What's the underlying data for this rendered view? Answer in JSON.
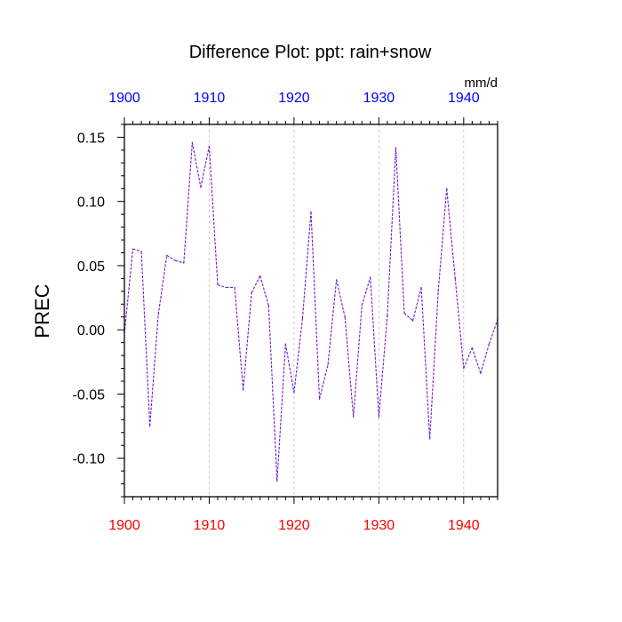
{
  "chart_data": {
    "type": "line",
    "title": "Difference Plot: ppt: rain+snow",
    "units_label": "mm/d",
    "ylabel": "PREC",
    "xlabel": "",
    "xlim": [
      1900,
      1944
    ],
    "ylim": [
      -0.13,
      0.16
    ],
    "x_ticks": [
      1900,
      1910,
      1920,
      1930,
      1940
    ],
    "x_tick_labels": [
      "1900",
      "1910",
      "1920",
      "1930",
      "1940"
    ],
    "y_ticks": [
      -0.1,
      -0.05,
      0.0,
      0.05,
      0.1,
      0.15
    ],
    "y_tick_labels": [
      "-0.10",
      "-0.05",
      "0.00",
      "0.05",
      "0.10",
      "0.15"
    ],
    "grid": "vertical dashed at decade ticks",
    "colors": {
      "bottom_axis_labels": "#ff0000",
      "top_axis_labels": "#0000ff",
      "series_line": "#6a1bd1",
      "grid": "#bbbbbb"
    },
    "series": [
      {
        "x": [
          1900,
          1901,
          1902,
          1903,
          1904,
          1905,
          1906,
          1907,
          1908,
          1909,
          1910,
          1911,
          1912,
          1913,
          1914,
          1915,
          1916,
          1917,
          1918,
          1919,
          1920,
          1921,
          1922,
          1923,
          1924,
          1925,
          1926,
          1927,
          1928,
          1929,
          1930,
          1931,
          1932,
          1933,
          1934,
          1935,
          1936,
          1937,
          1938,
          1939,
          1940,
          1941,
          1942,
          1943,
          1944
        ],
        "values": [
          -0.003,
          0.063,
          0.061,
          -0.075,
          0.012,
          0.058,
          0.054,
          0.052,
          0.146,
          0.111,
          0.143,
          0.035,
          0.033,
          0.033,
          -0.047,
          0.029,
          0.042,
          0.019,
          -0.118,
          -0.011,
          -0.049,
          0.009,
          0.092,
          -0.054,
          -0.027,
          0.039,
          0.01,
          -0.068,
          0.019,
          0.041,
          -0.068,
          0.011,
          0.142,
          0.013,
          0.007,
          0.033,
          -0.085,
          0.03,
          0.11,
          0.04,
          -0.03,
          -0.014,
          -0.034,
          -0.011,
          0.008
        ]
      }
    ]
  }
}
